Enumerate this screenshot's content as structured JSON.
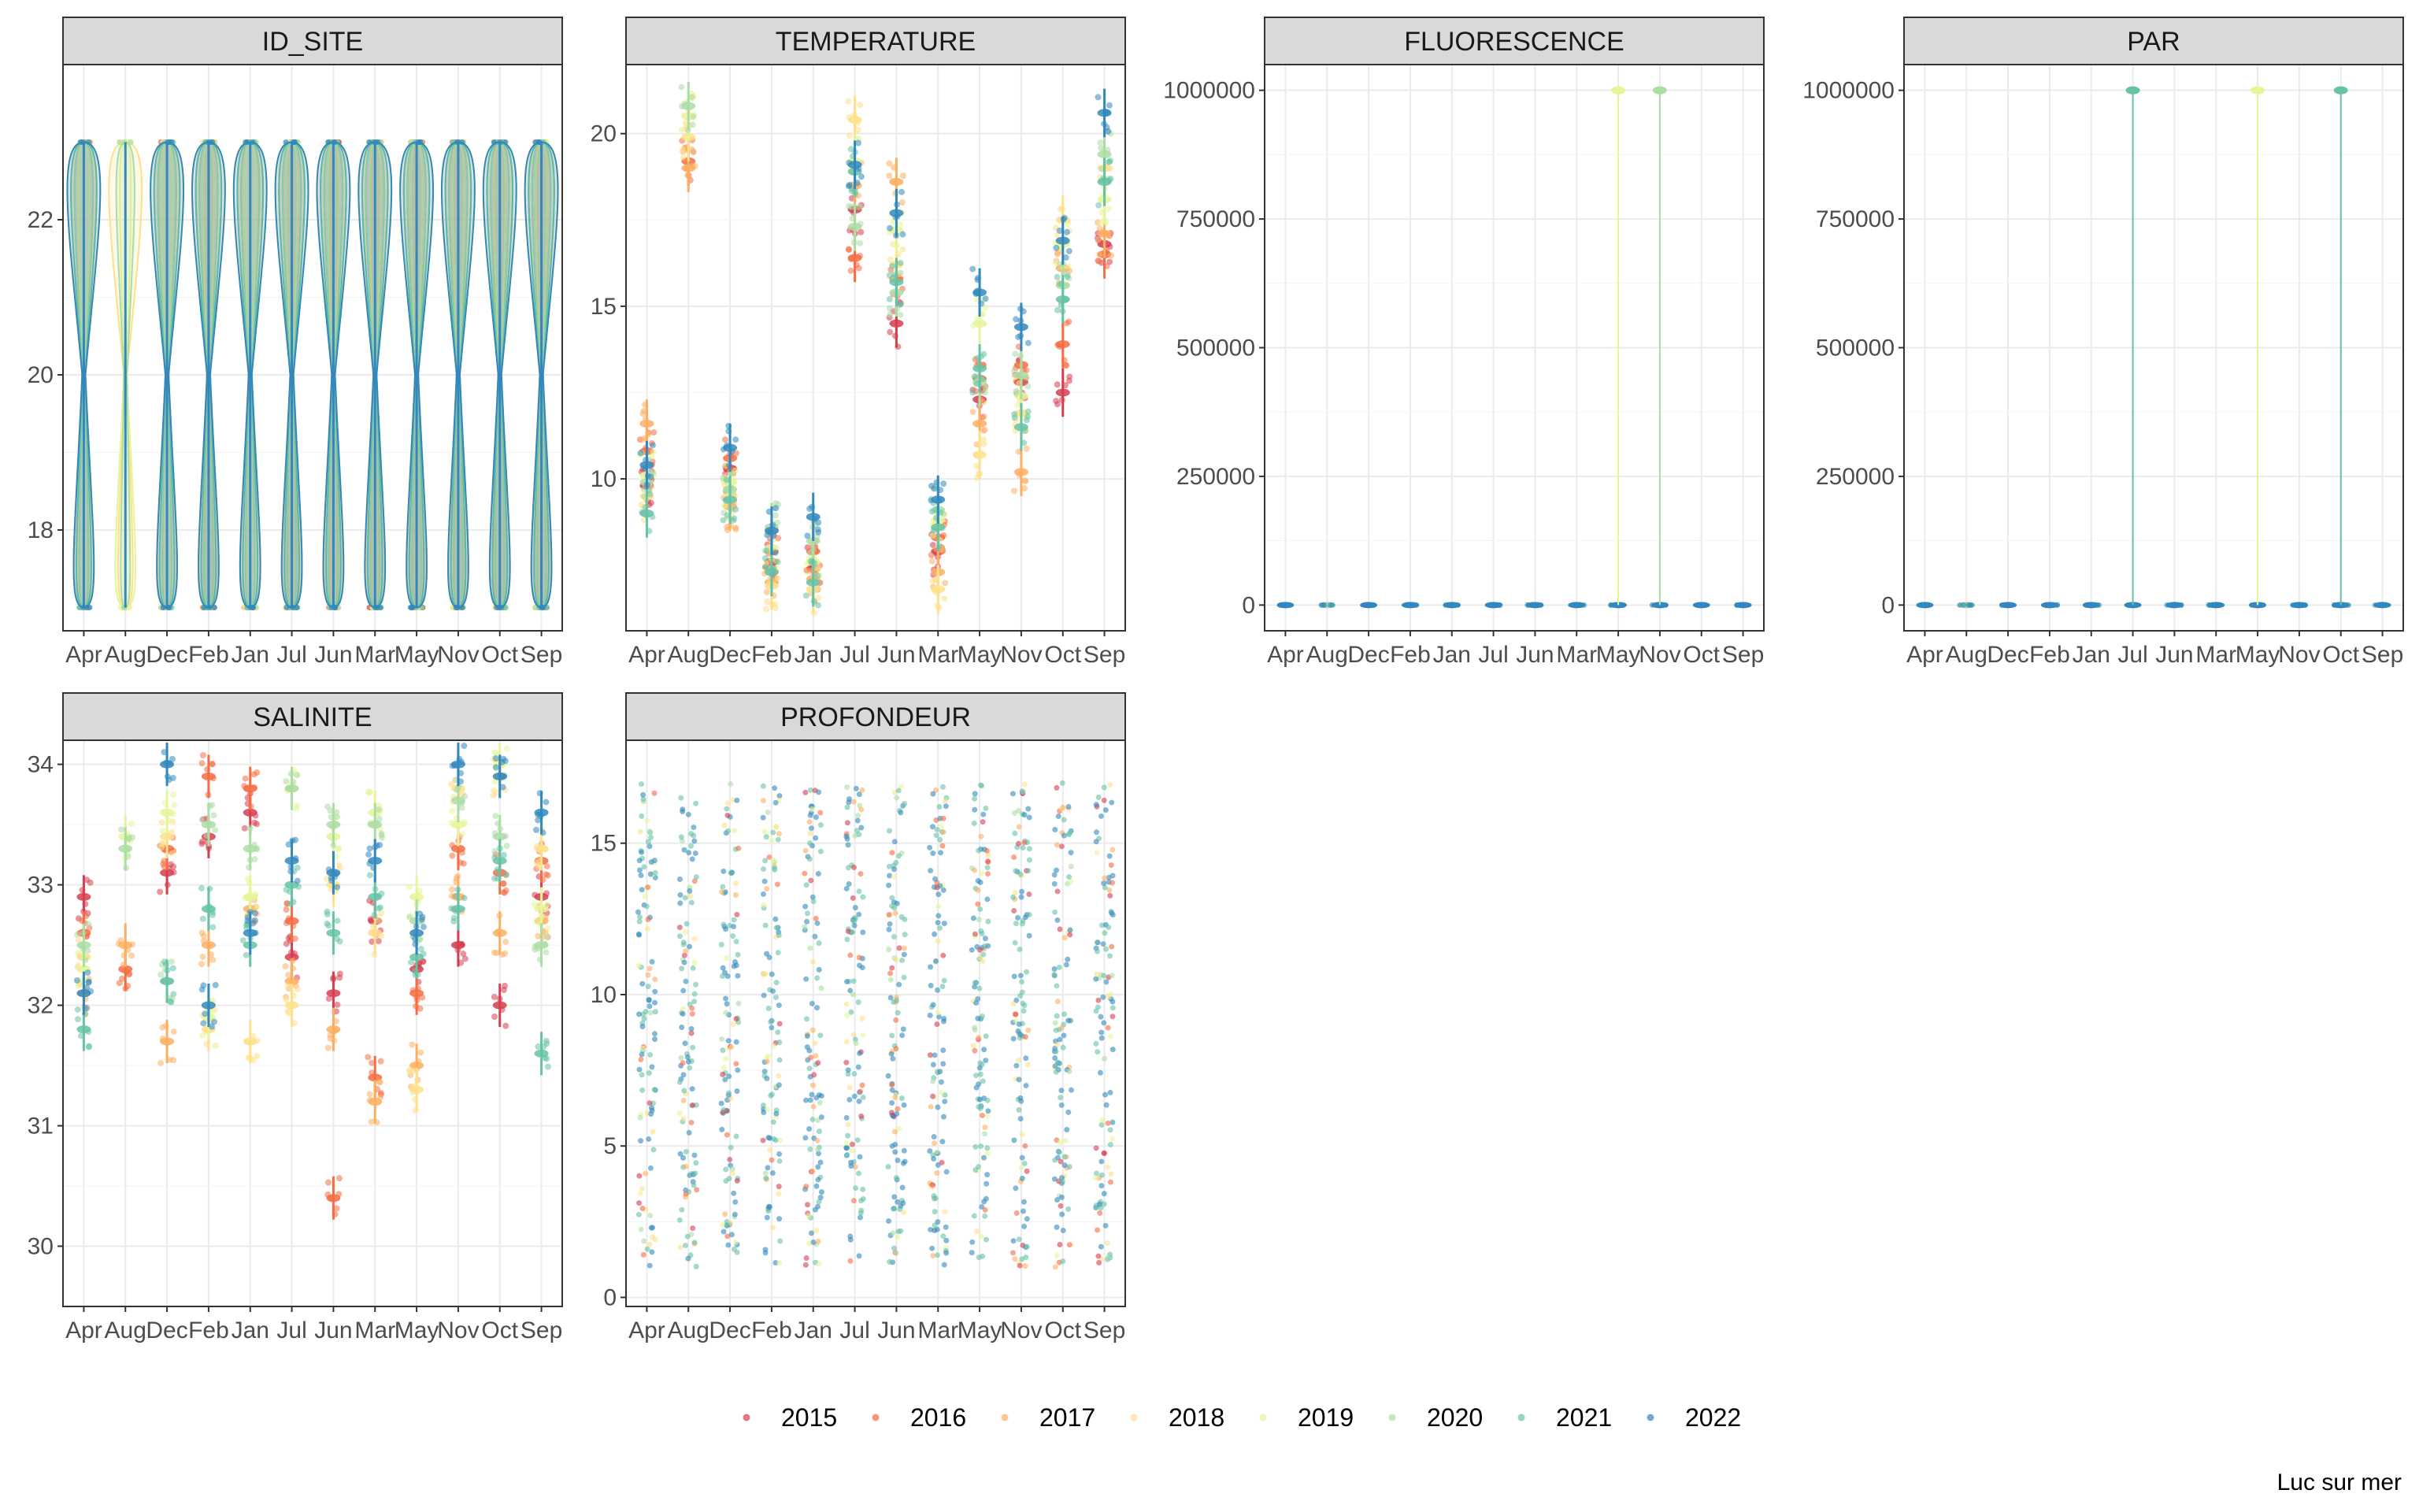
{
  "caption": "Luc sur mer",
  "colors": {
    "2015": "#d53e4f",
    "2016": "#f46d43",
    "2017": "#fdae61",
    "2018": "#fee08b",
    "2019": "#e6f598",
    "2020": "#abdda4",
    "2021": "#66c2a5",
    "2022": "#3288bd"
  },
  "legend": {
    "items": [
      "2015",
      "2016",
      "2017",
      "2018",
      "2019",
      "2020",
      "2021",
      "2022"
    ]
  },
  "chart_data": [
    {
      "type": "violin+jitter",
      "title": "ID_SITE",
      "categories": [
        "Apr",
        "Aug",
        "Dec",
        "Feb",
        "Jan",
        "Jul",
        "Jun",
        "Mar",
        "May",
        "Nov",
        "Oct",
        "Sep"
      ],
      "ylim": [
        16.7,
        24.0
      ],
      "yticks": [
        18,
        20,
        22
      ],
      "ytick_labels": [
        "18",
        "20",
        "22"
      ],
      "group_values": [
        17,
        23
      ],
      "series": [
        {
          "name": "2015",
          "months": [
            "Feb",
            "Jul",
            "Jun",
            "Mar",
            "May",
            "Nov",
            "Oct",
            "Sep"
          ]
        },
        {
          "name": "2016",
          "months": [
            "Apr",
            "Dec",
            "Feb",
            "Jan",
            "Jul",
            "Jun",
            "Mar",
            "May",
            "Nov",
            "Oct",
            "Sep"
          ]
        },
        {
          "name": "2017",
          "months": [
            "Apr",
            "Dec",
            "Feb",
            "Jan",
            "Jul",
            "Jun",
            "Mar",
            "May",
            "Nov",
            "Oct",
            "Sep"
          ]
        },
        {
          "name": "2018",
          "months": [
            "Apr",
            "Aug",
            "Dec",
            "Feb",
            "Jan",
            "Jul",
            "Jun",
            "Mar",
            "May",
            "Nov",
            "Oct",
            "Sep"
          ]
        },
        {
          "name": "2019",
          "months": [
            "Apr",
            "Aug",
            "Dec",
            "Feb",
            "Jan",
            "Jul",
            "Jun",
            "Mar",
            "May",
            "Nov",
            "Oct",
            "Sep"
          ]
        },
        {
          "name": "2020",
          "months": [
            "Apr",
            "Aug",
            "Dec",
            "Feb",
            "Jan",
            "Jul",
            "Jun",
            "Mar",
            "May",
            "Nov",
            "Oct",
            "Sep"
          ]
        },
        {
          "name": "2021",
          "months": [
            "Apr",
            "Dec",
            "Feb",
            "Jan",
            "Jul",
            "Jun",
            "Mar",
            "May",
            "Nov",
            "Oct",
            "Sep"
          ]
        },
        {
          "name": "2022",
          "months": [
            "Apr",
            "Dec",
            "Feb",
            "Jan",
            "Jul",
            "Jun",
            "Mar",
            "May",
            "Nov",
            "Oct",
            "Sep"
          ]
        }
      ]
    },
    {
      "type": "violin+jitter",
      "title": "TEMPERATURE",
      "categories": [
        "Apr",
        "Aug",
        "Dec",
        "Feb",
        "Jan",
        "Jul",
        "Jun",
        "Mar",
        "May",
        "Nov",
        "Oct",
        "Sep"
      ],
      "ylim": [
        5.6,
        22.0
      ],
      "yticks": [
        10,
        15,
        20
      ],
      "ytick_labels": [
        "10",
        "15",
        "20"
      ],
      "series": [
        {
          "name": "2015",
          "values": [
            9.8,
            null,
            10.3,
            7.6,
            7.4,
            17.8,
            14.5,
            7.9,
            12.3,
            12.8,
            12.5,
            16.8
          ]
        },
        {
          "name": "2016",
          "values": [
            10.8,
            19.2,
            10.6,
            7.9,
            7.9,
            16.4,
            15.8,
            8.3,
            12.9,
            13.3,
            13.9,
            16.5
          ]
        },
        {
          "name": "2017",
          "values": [
            11.6,
            19.0,
            9.2,
            7.0,
            7.1,
            18.5,
            18.6,
            7.3,
            11.6,
            10.2,
            16.1,
            17.1
          ]
        },
        {
          "name": "2018",
          "values": [
            9.5,
            19.9,
            9.5,
            6.9,
            6.8,
            20.4,
            16.2,
            6.8,
            10.7,
            11.9,
            17.5,
            19.0
          ]
        },
        {
          "name": "2019",
          "values": [
            10.1,
            20.5,
            9.9,
            8.0,
            7.6,
            19.2,
            17.2,
            8.8,
            14.5,
            12.4,
            16.8,
            18.1
          ]
        },
        {
          "name": "2020",
          "values": [
            9.9,
            20.8,
            9.7,
            8.6,
            8.2,
            17.3,
            15.4,
            9.1,
            12.8,
            13.0,
            15.6,
            19.4
          ]
        },
        {
          "name": "2021",
          "values": [
            9.0,
            null,
            9.4,
            7.3,
            7.0,
            18.9,
            15.7,
            8.6,
            13.2,
            11.5,
            15.2,
            18.6
          ]
        },
        {
          "name": "2022",
          "values": [
            10.4,
            null,
            10.9,
            8.5,
            8.9,
            19.1,
            17.7,
            9.4,
            15.4,
            14.4,
            16.9,
            20.6
          ]
        }
      ]
    },
    {
      "type": "violin+jitter",
      "title": "FLUORESCENCE",
      "categories": [
        "Apr",
        "Aug",
        "Dec",
        "Feb",
        "Jan",
        "Jul",
        "Jun",
        "Mar",
        "May",
        "Nov",
        "Oct",
        "Sep"
      ],
      "ylim": [
        -50000,
        1050000
      ],
      "yticks": [
        0,
        250000,
        500000,
        750000,
        1000000
      ],
      "ytick_labels": [
        "0",
        "250000",
        "500000",
        "750000",
        "1000000"
      ],
      "baseline_value": 0,
      "outliers": [
        {
          "month": "May",
          "year": "2019",
          "value": 1000000
        },
        {
          "month": "Nov",
          "year": "2020",
          "value": 1000000
        }
      ]
    },
    {
      "type": "violin+jitter",
      "title": "PAR",
      "categories": [
        "Apr",
        "Aug",
        "Dec",
        "Feb",
        "Jan",
        "Jul",
        "Jun",
        "Mar",
        "May",
        "Nov",
        "Oct",
        "Sep"
      ],
      "ylim": [
        -50000,
        1050000
      ],
      "yticks": [
        0,
        250000,
        500000,
        750000,
        1000000
      ],
      "ytick_labels": [
        "0",
        "250000",
        "500000",
        "750000",
        "1000000"
      ],
      "baseline_value": 0,
      "outliers": [
        {
          "month": "Jul",
          "year": "2021",
          "value": 1000000
        },
        {
          "month": "May",
          "year": "2019",
          "value": 1000000
        },
        {
          "month": "Oct",
          "year": "2021",
          "value": 1000000
        }
      ]
    },
    {
      "type": "violin+jitter",
      "title": "SALINITE",
      "categories": [
        "Apr",
        "Aug",
        "Dec",
        "Feb",
        "Jan",
        "Jul",
        "Jun",
        "Mar",
        "May",
        "Nov",
        "Oct",
        "Sep"
      ],
      "ylim": [
        29.5,
        34.2
      ],
      "yticks": [
        30,
        31,
        32,
        33,
        34
      ],
      "ytick_labels": [
        "30",
        "31",
        "32",
        "33",
        "34"
      ],
      "series": [
        {
          "name": "2015",
          "values": [
            32.9,
            null,
            33.1,
            33.4,
            33.6,
            32.4,
            32.1,
            32.7,
            32.3,
            32.5,
            32.0,
            32.9
          ]
        },
        {
          "name": "2016",
          "values": [
            32.6,
            32.3,
            33.3,
            33.9,
            33.8,
            32.7,
            30.4,
            31.4,
            32.1,
            33.3,
            33.1,
            33.2
          ]
        },
        {
          "name": "2017",
          "values": [
            32.1,
            32.5,
            31.7,
            32.5,
            32.8,
            32.2,
            31.8,
            31.2,
            31.5,
            32.9,
            32.6,
            32.7
          ]
        },
        {
          "name": "2018",
          "values": [
            32.4,
            null,
            33.4,
            31.8,
            31.7,
            32.0,
            33.0,
            32.6,
            31.3,
            33.8,
            33.9,
            33.3
          ]
        },
        {
          "name": "2019",
          "values": [
            32.3,
            33.4,
            33.6,
            31.9,
            32.9,
            33.8,
            33.4,
            33.6,
            32.9,
            33.5,
            34.0,
            32.8
          ]
        },
        {
          "name": "2020",
          "values": [
            32.5,
            33.3,
            32.2,
            33.5,
            33.3,
            33.8,
            33.5,
            33.5,
            32.7,
            33.7,
            33.4,
            32.5
          ]
        },
        {
          "name": "2021",
          "values": [
            31.8,
            null,
            32.2,
            32.8,
            32.5,
            33.0,
            32.6,
            32.9,
            32.4,
            32.8,
            33.2,
            31.6
          ]
        },
        {
          "name": "2022",
          "values": [
            32.1,
            null,
            34.0,
            32.0,
            32.6,
            33.2,
            33.1,
            33.2,
            32.6,
            34.0,
            33.9,
            33.6
          ]
        }
      ]
    },
    {
      "type": "violin+jitter",
      "title": "PROFONDEUR",
      "categories": [
        "Apr",
        "Aug",
        "Dec",
        "Feb",
        "Jan",
        "Jul",
        "Jun",
        "Mar",
        "May",
        "Nov",
        "Oct",
        "Sep"
      ],
      "ylim": [
        -0.3,
        18.4
      ],
      "yticks": [
        0,
        5,
        10,
        15
      ],
      "ytick_labels": [
        "0",
        "5",
        "10",
        "15"
      ],
      "depth_range": [
        1,
        17
      ]
    }
  ]
}
